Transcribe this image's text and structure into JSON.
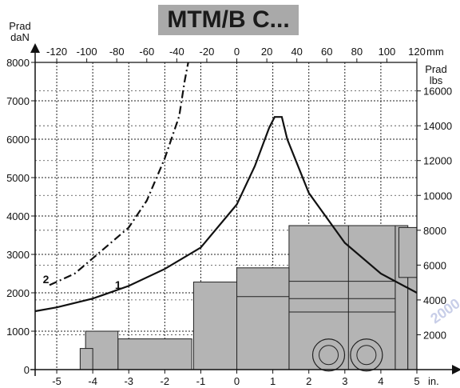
{
  "chart_data": {
    "type": "line",
    "title": "MTM/B C...",
    "left_axis": {
      "label_line1": "Prad",
      "label_line2": "daN",
      "ticks": [
        0,
        1000,
        2000,
        3000,
        4000,
        5000,
        6000,
        7000,
        8000
      ],
      "range": [
        0,
        8000
      ]
    },
    "right_axis": {
      "label_line1": "Prad",
      "label_line2": "lbs",
      "ticks": [
        "2000",
        "4000",
        "6000",
        "8000",
        "10000",
        "12000",
        "14000",
        "16000"
      ]
    },
    "top_axis": {
      "unit": "mm",
      "ticks": [
        "-120",
        "-100",
        "-80",
        "-60",
        "-40",
        "-20",
        "0",
        "20",
        "40",
        "60",
        "80",
        "100",
        "120"
      ]
    },
    "bottom_axis": {
      "unit": "in.",
      "ticks": [
        "-5",
        "-4",
        "-3",
        "-2",
        "-1",
        "0",
        "1",
        "2",
        "3",
        "4",
        "5"
      ],
      "range": [
        -5.6,
        5
      ]
    },
    "series": [
      {
        "name": "1",
        "style": "solid",
        "color": "#111111",
        "points": [
          [
            -5.6,
            1520
          ],
          [
            -5,
            1620
          ],
          [
            -4,
            1850
          ],
          [
            -3,
            2180
          ],
          [
            -2,
            2620
          ],
          [
            -1,
            3180
          ],
          [
            0,
            4300
          ],
          [
            0.5,
            5300
          ],
          [
            0.9,
            6300
          ],
          [
            1.05,
            6580
          ],
          [
            1.25,
            6580
          ],
          [
            1.4,
            6000
          ],
          [
            2,
            4600
          ],
          [
            3,
            3300
          ],
          [
            4,
            2500
          ],
          [
            5,
            2000
          ]
        ]
      },
      {
        "name": "2",
        "style": "dash-dot",
        "color": "#111111",
        "points": [
          [
            -5.2,
            2200
          ],
          [
            -4.5,
            2500
          ],
          [
            -4,
            2900
          ],
          [
            -3,
            3700
          ],
          [
            -2.5,
            4400
          ],
          [
            -2,
            5500
          ],
          [
            -1.6,
            6600
          ],
          [
            -1.45,
            7500
          ],
          [
            -1.35,
            8000
          ]
        ]
      }
    ],
    "annotations": [
      {
        "text": "1",
        "x": -3.3,
        "y": 2100
      },
      {
        "text": "2",
        "x": -5.3,
        "y": 2250
      }
    ],
    "watermark": "2000",
    "grid": true
  }
}
